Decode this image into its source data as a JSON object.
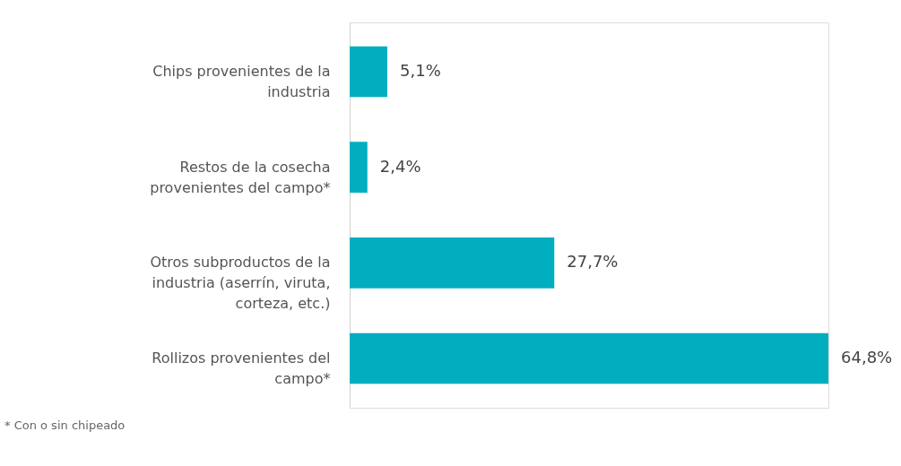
{
  "chart_data": {
    "type": "bar",
    "orientation": "horizontal",
    "categories": [
      "Chips provenientes de la industria",
      "Restos de la cosecha provenientes del campo*",
      "Otros subproductos de la industria (aserrín, viruta, corteza, etc.)",
      "Rollizos provenientes del campo*"
    ],
    "values": [
      5.1,
      2.4,
      27.7,
      64.8
    ],
    "value_labels": [
      "5,1%",
      "2,4%",
      "27,7%",
      "64,8%"
    ],
    "color": "#00aebf",
    "annotations": [
      "* Con o sin chipeado"
    ],
    "grid": false
  }
}
